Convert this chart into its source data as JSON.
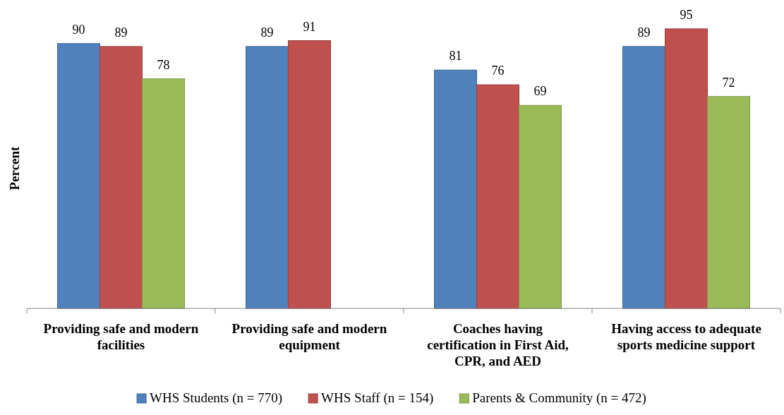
{
  "chart_data": {
    "type": "bar",
    "ylabel": "Percent",
    "categories": [
      "Providing safe and modern facilities",
      "Providing safe and modern equipment",
      "Coaches having certification in First Aid, CPR, and AED",
      "Having access to adequate sports medicine support"
    ],
    "series": [
      {
        "name": "WHS Students (n = 770)",
        "color": "#4f81bd",
        "values": [
          90,
          89,
          81,
          89
        ]
      },
      {
        "name": "WHS Staff (n = 154)",
        "color": "#c0504d",
        "values": [
          89,
          91,
          76,
          95
        ]
      },
      {
        "name": "Parents & Community (n = 472)",
        "color": "#9bbb59",
        "values": [
          78,
          null,
          69,
          72
        ]
      }
    ],
    "data_labels": true,
    "legend": "bottom"
  }
}
